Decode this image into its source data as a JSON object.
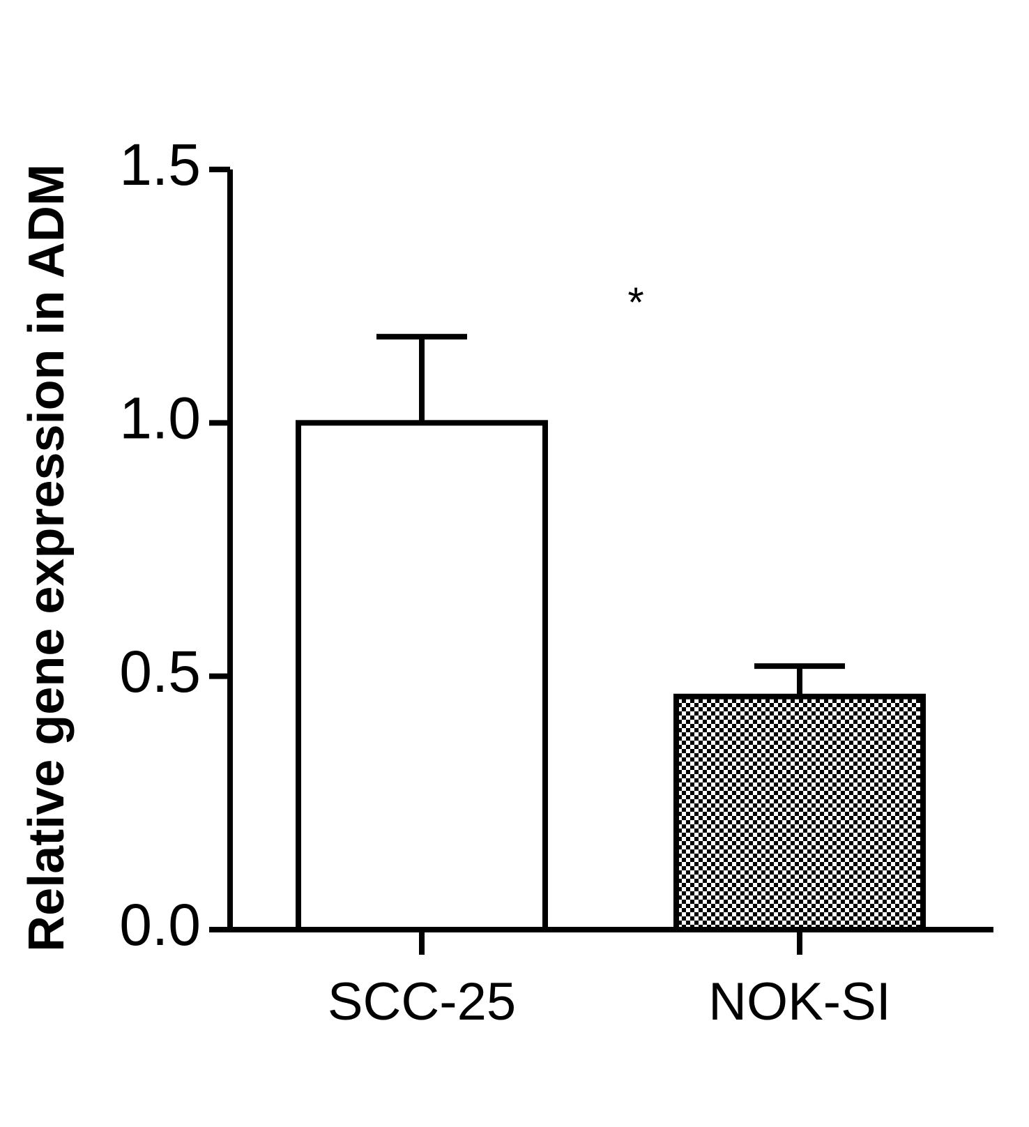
{
  "chart_data": {
    "type": "bar",
    "y_label": "Relative gene expression in ADM",
    "annotation": "*",
    "categories": [
      "SCC-25",
      "NOK-SI"
    ],
    "values": [
      1.0,
      0.46
    ],
    "errors": [
      0.17,
      0.06
    ],
    "fills": [
      "solid",
      "checkerboard"
    ],
    "color": "#000000",
    "ylim": [
      0,
      1.5
    ],
    "yticks": [
      {
        "value": 0,
        "label": "0.0"
      },
      {
        "value": 0.5,
        "label": "0.5"
      },
      {
        "value": 1,
        "label": "1.0"
      },
      {
        "value": 1.5,
        "label": "1.5"
      }
    ],
    "grid": false
  }
}
